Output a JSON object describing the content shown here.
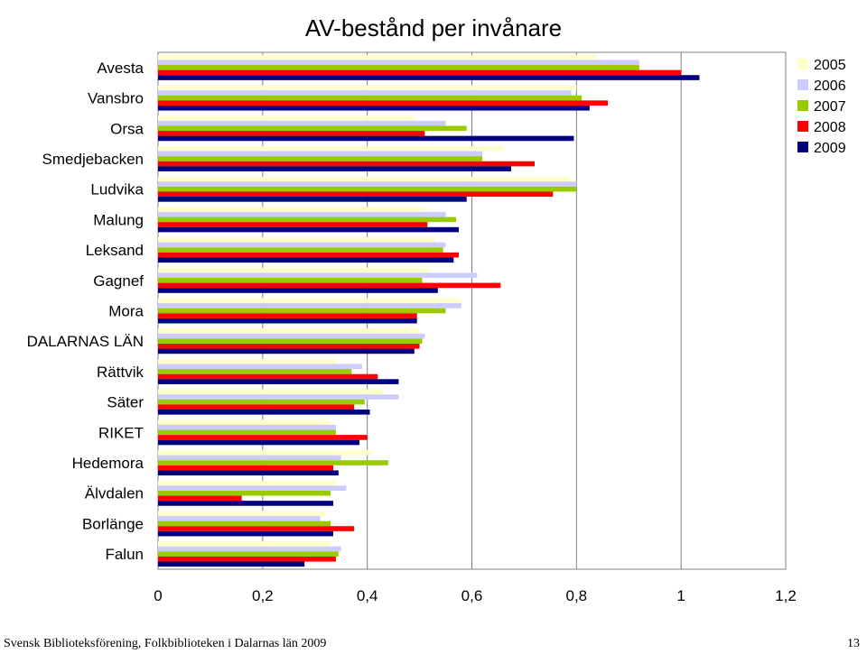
{
  "chart_data": {
    "type": "bar",
    "orientation": "horizontal",
    "title": "AV-bestånd per invånare",
    "xlabel": "",
    "ylabel": "",
    "xlim": [
      0,
      1.2
    ],
    "x_ticks": [
      "0",
      "0,2",
      "0,4",
      "0,6",
      "0,8",
      "1",
      "1,2"
    ],
    "grid": "vertical",
    "legend_position": "top-right",
    "categories": [
      "Avesta",
      "Vansbro",
      "Orsa",
      "Smedjebacken",
      "Ludvika",
      "Malung",
      "Leksand",
      "Gagnef",
      "Mora",
      "DALARNAS LÄN",
      "Rättvik",
      "Säter",
      "RIKET",
      "Hedemora",
      "Älvdalen",
      "Borlänge",
      "Falun"
    ],
    "series": [
      {
        "name": "2005",
        "color": "#ffffcc",
        "values": [
          0.84,
          0.8,
          0.49,
          0.66,
          0.79,
          0.51,
          0.53,
          0.52,
          0.58,
          0.5,
          0.34,
          0.43,
          0.33,
          0.41,
          0.34,
          0.32,
          0.33
        ]
      },
      {
        "name": "2006",
        "color": "#ccccff",
        "values": [
          0.92,
          0.79,
          0.55,
          0.62,
          0.8,
          0.55,
          0.55,
          0.61,
          0.58,
          0.51,
          0.39,
          0.46,
          0.34,
          0.35,
          0.36,
          0.31,
          0.35
        ]
      },
      {
        "name": "2007",
        "color": "#99cc00",
        "values": [
          0.92,
          0.81,
          0.59,
          0.62,
          0.8,
          0.57,
          0.545,
          0.505,
          0.55,
          0.505,
          0.37,
          0.395,
          0.34,
          0.44,
          0.33,
          0.33,
          0.345
        ]
      },
      {
        "name": "2008",
        "color": "#ff0000",
        "values": [
          1.0,
          0.86,
          0.51,
          0.72,
          0.755,
          0.515,
          0.575,
          0.655,
          0.495,
          0.5,
          0.42,
          0.375,
          0.4,
          0.335,
          0.16,
          0.375,
          0.34
        ]
      },
      {
        "name": "2009",
        "color": "#000080",
        "values": [
          1.035,
          0.825,
          0.795,
          0.675,
          0.59,
          0.575,
          0.565,
          0.535,
          0.495,
          0.49,
          0.46,
          0.405,
          0.385,
          0.345,
          0.335,
          0.335,
          0.28
        ]
      }
    ]
  },
  "footer": {
    "source": "Svensk Biblioteksförening, Folkbiblioteken i Dalarnas län 2009",
    "page_number": "13"
  }
}
